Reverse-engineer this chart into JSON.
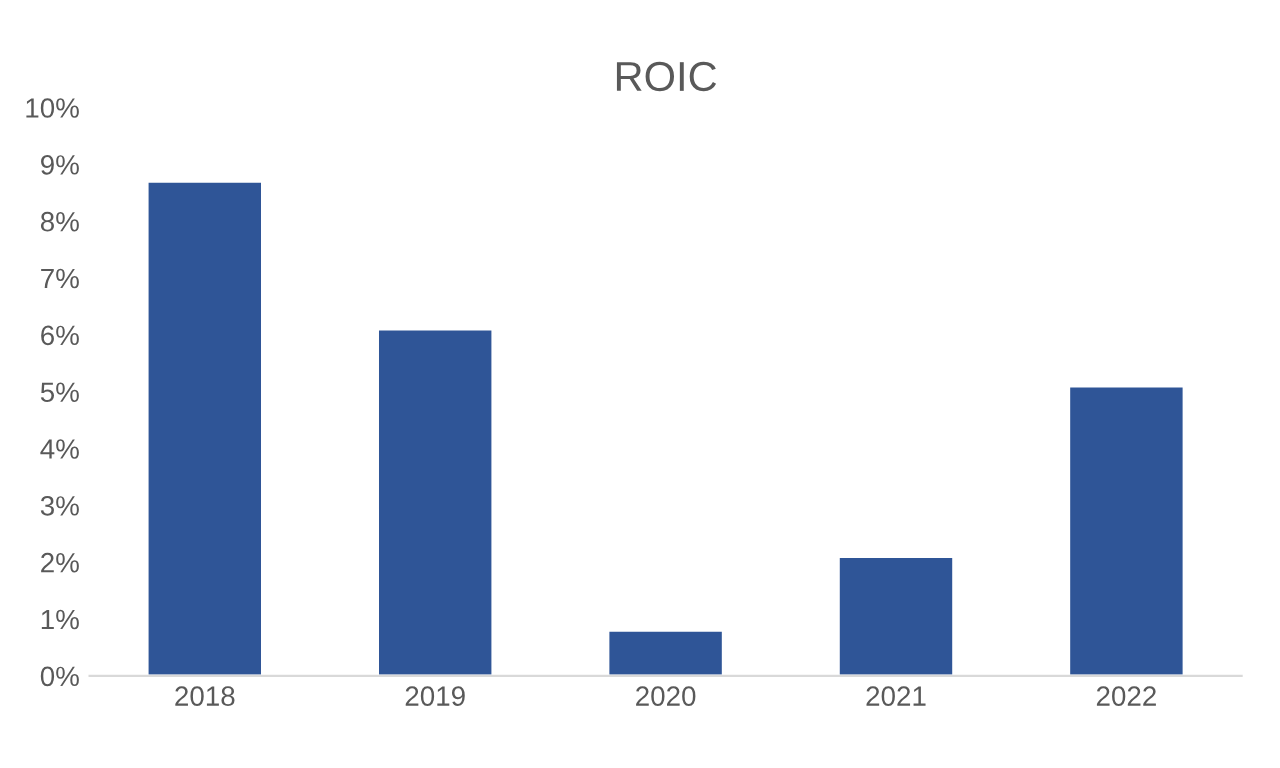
{
  "chart_data": {
    "type": "bar",
    "title": "ROIC",
    "categories": [
      "2018",
      "2019",
      "2020",
      "2021",
      "2022"
    ],
    "values": [
      8.7,
      6.1,
      0.8,
      2.1,
      5.1
    ],
    "color": "#2f5597",
    "ylim": [
      0,
      10
    ],
    "yticks": [
      {
        "value": 0,
        "label": "0%"
      },
      {
        "value": 1,
        "label": "1%"
      },
      {
        "value": 2,
        "label": "2%"
      },
      {
        "value": 3,
        "label": "3%"
      },
      {
        "value": 4,
        "label": "4%"
      },
      {
        "value": 5,
        "label": "5%"
      },
      {
        "value": 6,
        "label": "6%"
      },
      {
        "value": 7,
        "label": "7%"
      },
      {
        "value": 8,
        "label": "8%"
      },
      {
        "value": 9,
        "label": "9%"
      },
      {
        "value": 10,
        "label": "10%"
      }
    ],
    "grid": false
  }
}
